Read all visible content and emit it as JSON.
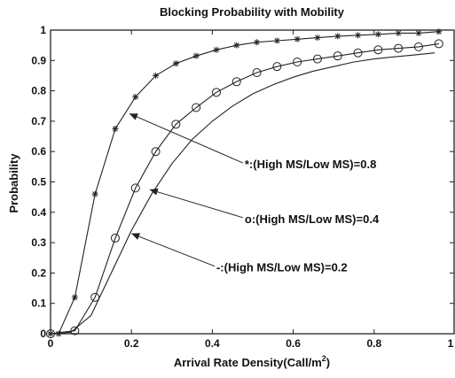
{
  "chart_data": {
    "type": "line",
    "title": "Blocking Probability with Mobility",
    "xlabel": "Arrival Rate Density(Call/m²)",
    "xlabel_main": "Arrival Rate Density(Call/m",
    "xlabel_sup": "2",
    "xlabel_end": ")",
    "ylabel": "Probability",
    "xlim": [
      0,
      1
    ],
    "ylim": [
      0,
      1
    ],
    "grid": false,
    "xticks": [
      "0",
      "0.2",
      "0.4",
      "0.6",
      "0.8",
      "1"
    ],
    "yticks": [
      "0",
      "0.1",
      "0.2",
      "0.3",
      "0.4",
      "0.5",
      "0.6",
      "0.7",
      "0.8",
      "0.9",
      "1"
    ],
    "series": [
      {
        "marker": "star",
        "x": [
          0,
          0.02,
          0.06,
          0.11,
          0.16,
          0.21,
          0.26,
          0.31,
          0.36,
          0.41,
          0.46,
          0.51,
          0.56,
          0.61,
          0.66,
          0.71,
          0.76,
          0.81,
          0.86,
          0.91,
          0.96
        ],
        "y": [
          0,
          0.0,
          0.12,
          0.46,
          0.675,
          0.78,
          0.85,
          0.89,
          0.915,
          0.935,
          0.95,
          0.96,
          0.965,
          0.97,
          0.975,
          0.98,
          0.983,
          0.986,
          0.99,
          0.99,
          0.995
        ]
      },
      {
        "marker": "circle",
        "x": [
          0,
          0.06,
          0.11,
          0.16,
          0.21,
          0.26,
          0.31,
          0.36,
          0.41,
          0.46,
          0.51,
          0.56,
          0.61,
          0.66,
          0.71,
          0.76,
          0.81,
          0.86,
          0.91,
          0.96
        ],
        "y": [
          0,
          0.01,
          0.12,
          0.315,
          0.48,
          0.6,
          0.69,
          0.745,
          0.795,
          0.83,
          0.86,
          0.88,
          0.895,
          0.905,
          0.915,
          0.925,
          0.935,
          0.94,
          0.945,
          0.955
        ]
      },
      {
        "marker": "none",
        "x": [
          0,
          0.05,
          0.1,
          0.15,
          0.2,
          0.25,
          0.3,
          0.35,
          0.4,
          0.45,
          0.5,
          0.55,
          0.6,
          0.65,
          0.7,
          0.75,
          0.8,
          0.85,
          0.9,
          0.95
        ],
        "y": [
          0,
          0.005,
          0.06,
          0.2,
          0.34,
          0.46,
          0.56,
          0.64,
          0.7,
          0.75,
          0.79,
          0.82,
          0.845,
          0.865,
          0.88,
          0.895,
          0.905,
          0.912,
          0.918,
          0.925
        ]
      }
    ],
    "annotations": [
      {
        "text": "*:(High MS/Low MS)=0.8",
        "x": 0.48,
        "y": 0.545,
        "arrow_to": [
          0.195,
          0.725
        ]
      },
      {
        "text": "o:(High MS/Low MS)=0.4",
        "x": 0.48,
        "y": 0.365,
        "arrow_to": [
          0.245,
          0.475
        ]
      },
      {
        "text": "-:(High MS/Low MS)=0.2",
        "x": 0.41,
        "y": 0.205,
        "arrow_to": [
          0.2,
          0.33
        ]
      }
    ]
  }
}
